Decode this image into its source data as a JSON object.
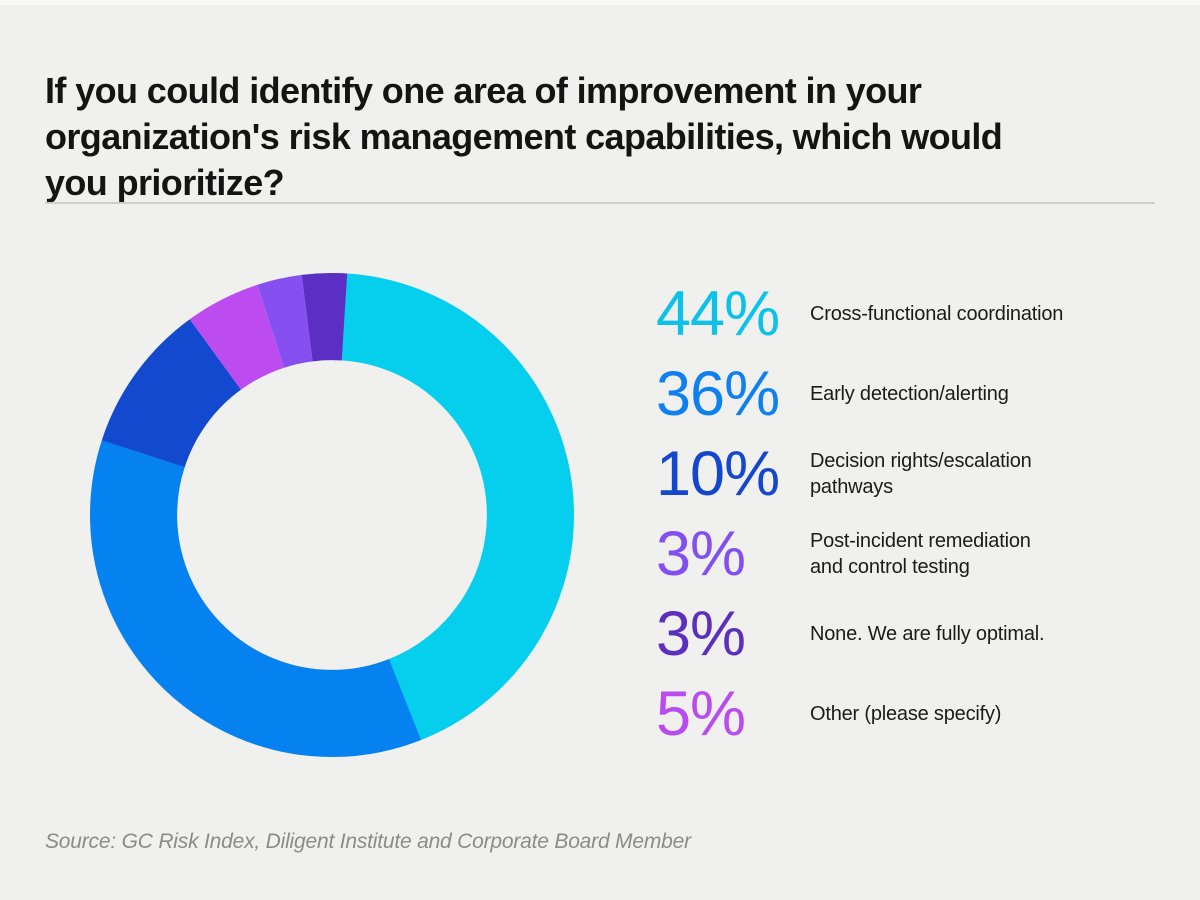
{
  "page": {
    "background": "#f0f0ef"
  },
  "header": {
    "title": "If you could identify one area of improvement in your\norganization's risk management capabilities, which would\nyou prioritize?",
    "title_color": "#141414"
  },
  "chart_data": {
    "type": "pie",
    "subtype": "donut",
    "start_angle_deg": 0,
    "direction": "clockwise",
    "inner_radius_ratio": 0.64,
    "legend_position": "right",
    "title": "",
    "segments_draw_order": [
      {
        "category": "Cross-functional coordination",
        "value": 44,
        "color": "#06cfee"
      },
      {
        "category": "Early detection/alerting",
        "value": 36,
        "color": "#0682f0"
      },
      {
        "category": "Decision rights/escalation pathways",
        "value": 10,
        "color": "#1249cf"
      },
      {
        "category": "Other (please specify)",
        "value": 5,
        "color": "#bd4cf0"
      },
      {
        "category": "Post-incident remediation and control testing",
        "value": 3,
        "color": "#8650f0"
      },
      {
        "category": "None. We are fully optimal.",
        "value": 3,
        "color": "#5c2fc4"
      }
    ]
  },
  "legend": {
    "items": [
      {
        "pct": "44%",
        "label": "Cross-functional coordination",
        "color": "#0cc2e8"
      },
      {
        "pct": "36%",
        "label": "Early detection/alerting",
        "color": "#0f80ef"
      },
      {
        "pct": "10%",
        "label": "Decision rights/escalation\npathways",
        "color": "#1547ce"
      },
      {
        "pct": "3%",
        "label": "Post-incident remediation\nand control testing",
        "color": "#8250f0"
      },
      {
        "pct": "3%",
        "label": "None. We are fully optimal.",
        "color": "#5d2fbe"
      },
      {
        "pct": "5%",
        "label": "Other (please specify)",
        "color": "#b94cee"
      }
    ],
    "label_color": "#1b1b1b"
  },
  "footer": {
    "source": "Source: GC Risk Index, Diligent Institute and Corporate Board Member",
    "color": "#8b8b8b"
  }
}
